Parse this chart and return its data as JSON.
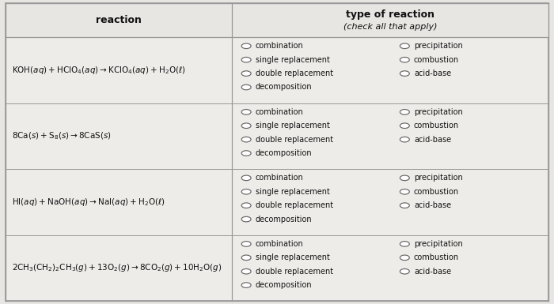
{
  "bg_color": "#e8e6e3",
  "cell_bg": "#eeece9",
  "border_color": "#999999",
  "text_color": "#111111",
  "title_reaction": "reaction",
  "title_type": "type of reaction",
  "title_type_sub": "(check all that apply)",
  "reactions_math": [
    "$\\mathrm{KOH}(aq) + \\mathrm{HClO_4}(aq) \\rightarrow \\mathrm{KClO_4}(aq) + \\mathrm{H_2O}(\\ell)$",
    "$\\mathrm{8Ca}(s) + \\mathrm{S_8}(s) \\rightarrow \\mathrm{8CaS}(s)$",
    "$\\mathrm{HI}(aq) + \\mathrm{NaOH}(aq) \\rightarrow \\mathrm{NaI}(aq) + \\mathrm{H_2O}(\\ell)$",
    "$\\mathrm{2CH_3(CH_2)_2CH_3}(g) + \\mathrm{13O_2}(g) \\rightarrow \\mathrm{8CO_2}(g) + \\mathrm{10H_2O}(g)$"
  ],
  "options_left": [
    "combination",
    "single replacement",
    "double replacement",
    "decomposition"
  ],
  "options_right": [
    "precipitation",
    "combustion",
    "acid-base"
  ],
  "col_split": 0.418,
  "fig_width": 7.0,
  "fig_height": 3.85,
  "dpi": 100
}
